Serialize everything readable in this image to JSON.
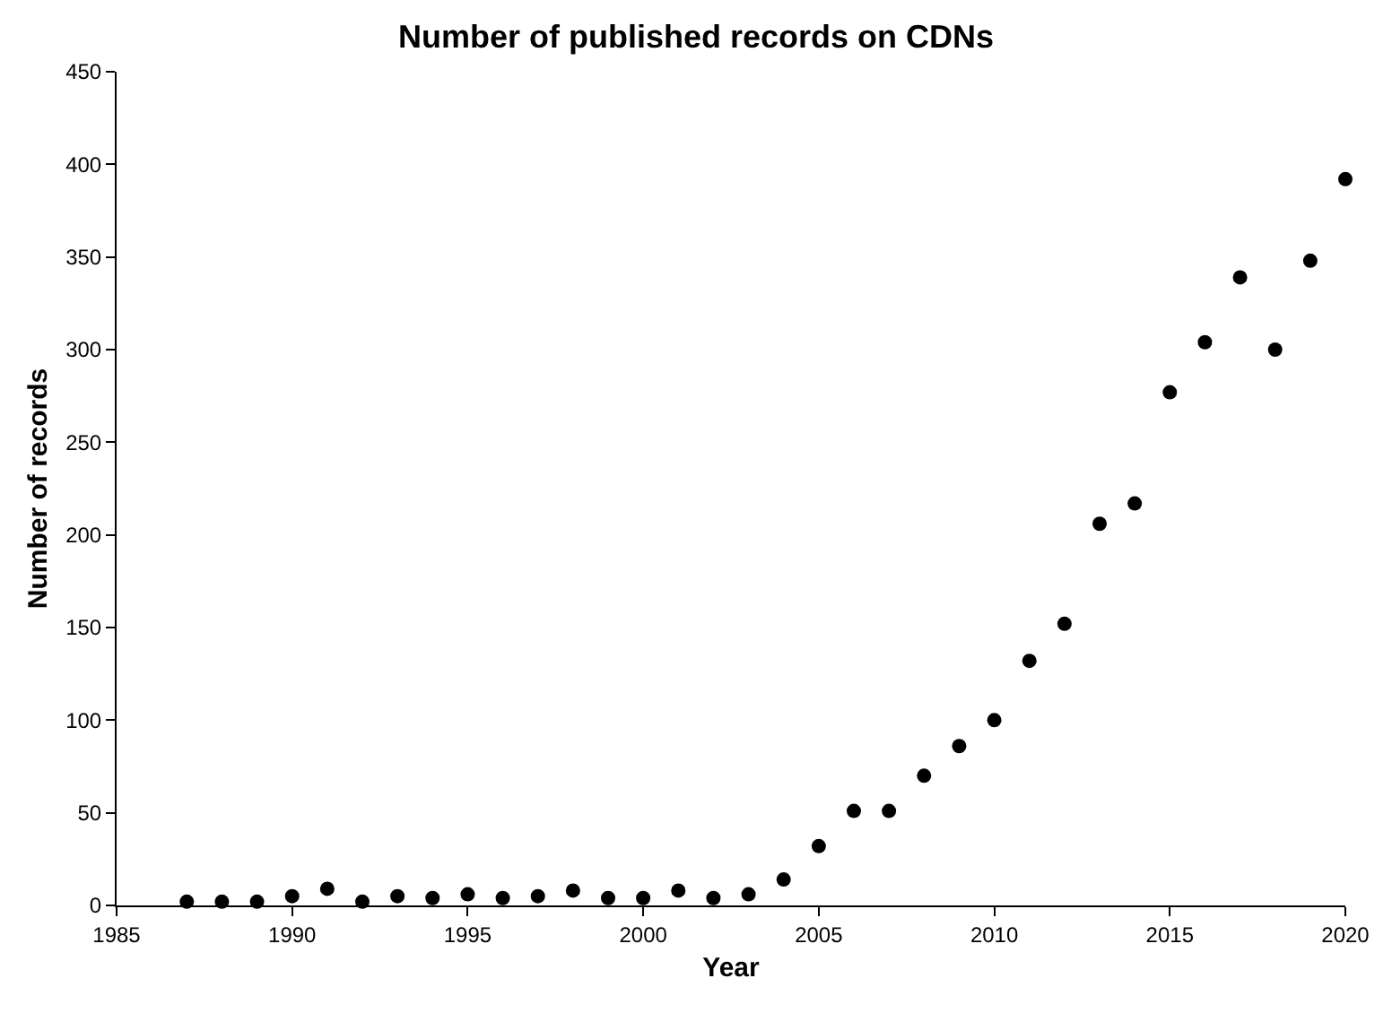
{
  "chart_data": {
    "type": "scatter",
    "title": "Number of published records on CDNs",
    "xlabel": "Year",
    "ylabel": "Number of records",
    "x": [
      1987,
      1988,
      1989,
      1990,
      1991,
      1992,
      1993,
      1994,
      1995,
      1996,
      1997,
      1998,
      1999,
      2000,
      2001,
      2002,
      2003,
      2004,
      2005,
      2006,
      2007,
      2008,
      2009,
      2010,
      2011,
      2012,
      2013,
      2014,
      2015,
      2016,
      2017,
      2018,
      2019,
      2020
    ],
    "values": [
      2,
      2,
      2,
      5,
      9,
      2,
      5,
      4,
      6,
      4,
      5,
      8,
      4,
      4,
      8,
      4,
      6,
      14,
      32,
      51,
      51,
      70,
      86,
      100,
      132,
      152,
      206,
      217,
      277,
      304,
      339,
      300,
      348,
      392
    ],
    "color": "#000000",
    "marker": "circle",
    "xlim": [
      1985,
      2020
    ],
    "xticks": [
      1985,
      1990,
      1995,
      2000,
      2005,
      2010,
      2015,
      2020
    ],
    "ylim": [
      0,
      450
    ],
    "yticks": [
      0,
      50,
      100,
      150,
      200,
      250,
      300,
      350,
      400,
      450
    ],
    "grid": false,
    "legend": false
  }
}
